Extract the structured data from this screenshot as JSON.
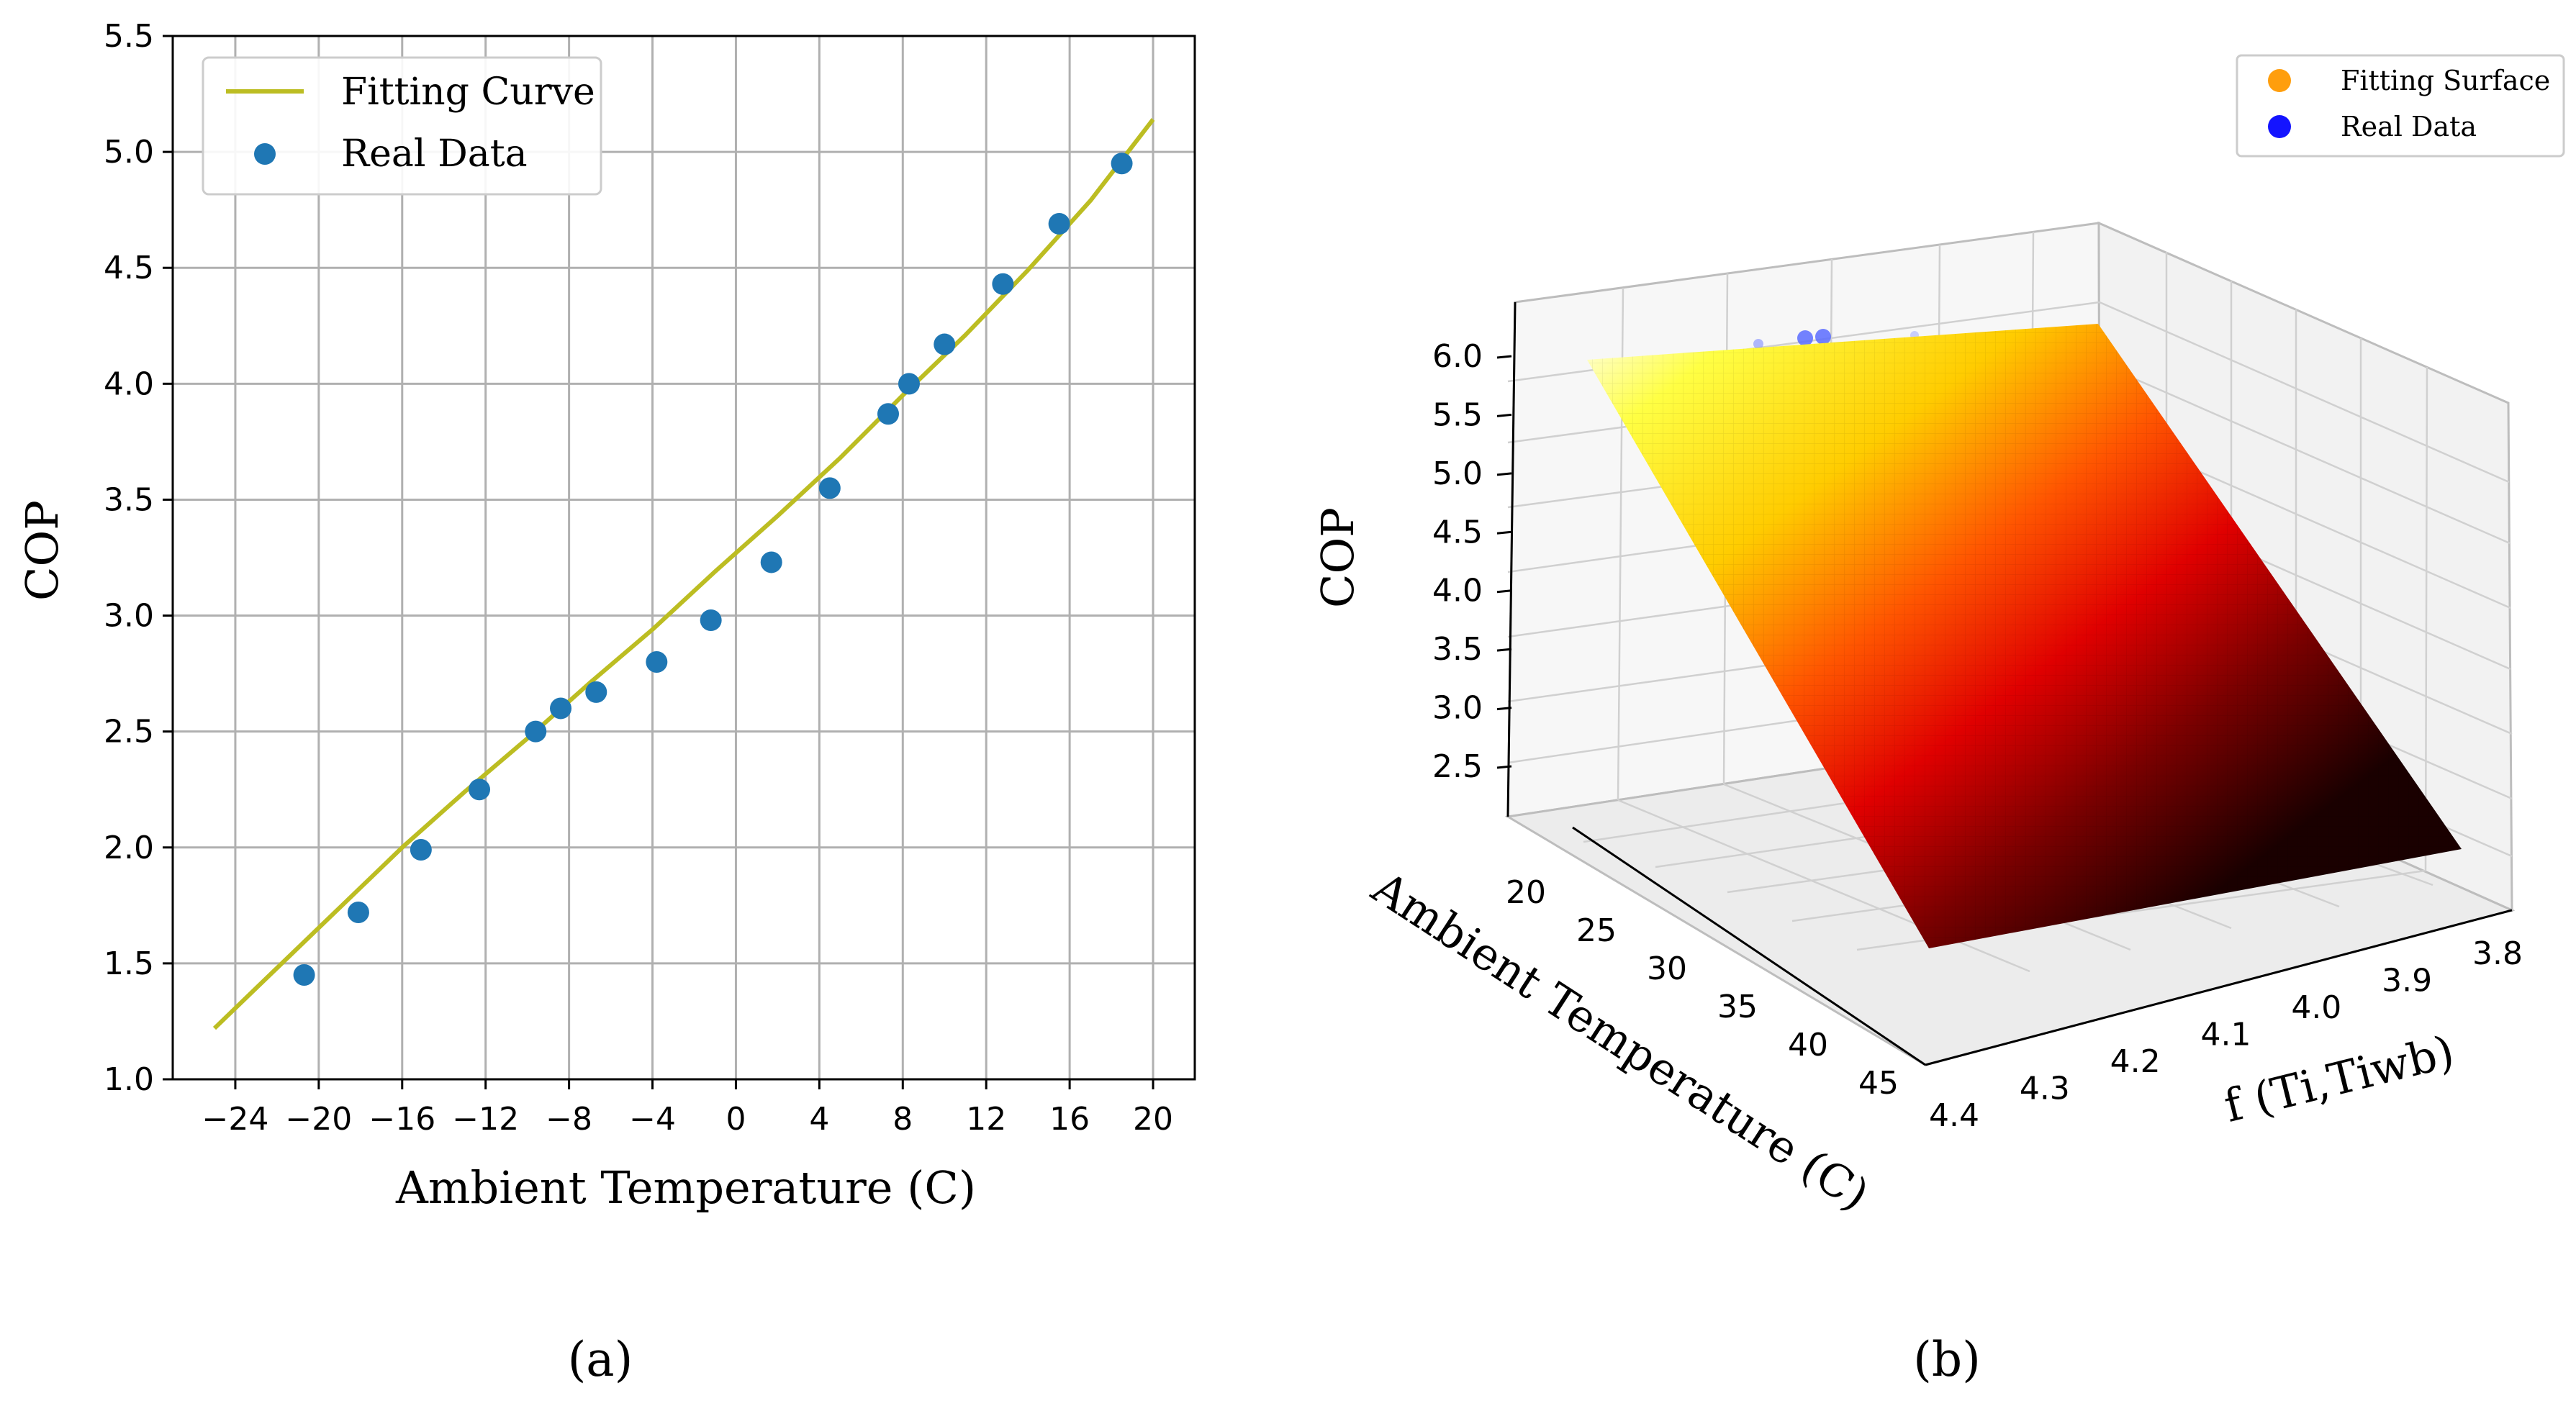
{
  "chart_data": [
    {
      "type": "line",
      "panel_label": "(a)",
      "xlabel": "Ambient Temperature (C)",
      "ylabel": "COP",
      "xlim": [
        -27,
        22
      ],
      "ylim": [
        1.0,
        5.5
      ],
      "xticks": [
        -24,
        -20,
        -16,
        -12,
        -8,
        -4,
        0,
        4,
        8,
        12,
        16,
        20
      ],
      "xtick_labels": [
        "−24",
        "−20",
        "−16",
        "−12",
        "−8",
        "−4",
        "0",
        "4",
        "8",
        "12",
        "16",
        "20"
      ],
      "yticks": [
        1.0,
        1.5,
        2.0,
        2.5,
        3.0,
        3.5,
        4.0,
        4.5,
        5.0,
        5.5
      ],
      "ytick_labels": [
        "1.0",
        "1.5",
        "2.0",
        "2.5",
        "3.0",
        "3.5",
        "4.0",
        "4.5",
        "5.0",
        "5.5"
      ],
      "grid": true,
      "legend_position": "top-left",
      "series": [
        {
          "name": "Fitting Curve",
          "kind": "line",
          "color": "#bcbd22",
          "x": [
            -25,
            -22,
            -19,
            -16,
            -13,
            -10,
            -7,
            -4,
            -1,
            2,
            5,
            8,
            11,
            14,
            17,
            20
          ],
          "y": [
            1.22,
            1.48,
            1.74,
            2.0,
            2.24,
            2.47,
            2.71,
            2.94,
            3.19,
            3.43,
            3.68,
            3.95,
            4.21,
            4.49,
            4.79,
            5.14
          ]
        },
        {
          "name": "Real Data",
          "kind": "scatter",
          "color": "#1f77b4",
          "x": [
            -20.7,
            -18.1,
            -15.1,
            -12.3,
            -9.6,
            -8.4,
            -6.7,
            -3.8,
            -1.2,
            1.7,
            4.5,
            7.3,
            8.3,
            10.0,
            12.8,
            15.5,
            18.5
          ],
          "y": [
            1.45,
            1.72,
            1.99,
            2.25,
            2.5,
            2.6,
            2.67,
            2.8,
            2.98,
            3.23,
            3.55,
            3.87,
            4.0,
            4.17,
            4.43,
            4.69,
            4.95
          ]
        }
      ]
    },
    {
      "type": "surface3d",
      "panel_label": "(b)",
      "xlabel": "Ambient Temperature (C)",
      "ylabel": "f (Ti,Tiwb)",
      "zlabel": "COP",
      "x_ticks": [
        "20",
        "25",
        "30",
        "35",
        "40",
        "45"
      ],
      "y_ticks": [
        "4.4",
        "4.3",
        "4.2",
        "4.1",
        "4.0",
        "3.9",
        "3.8"
      ],
      "z_ticks": [
        "2.5",
        "3.0",
        "3.5",
        "4.0",
        "4.5",
        "5.0",
        "5.5",
        "6.0"
      ],
      "x_range": [
        17,
        48
      ],
      "y_range": [
        3.75,
        4.45
      ],
      "z_range": [
        2.2,
        6.2
      ],
      "colormap": "hot",
      "legend_position": "top-right",
      "series": [
        {
          "name": "Fitting Surface",
          "color": "#ff9e0d"
        },
        {
          "name": "Real Data",
          "color": "#1414ff"
        }
      ]
    }
  ]
}
